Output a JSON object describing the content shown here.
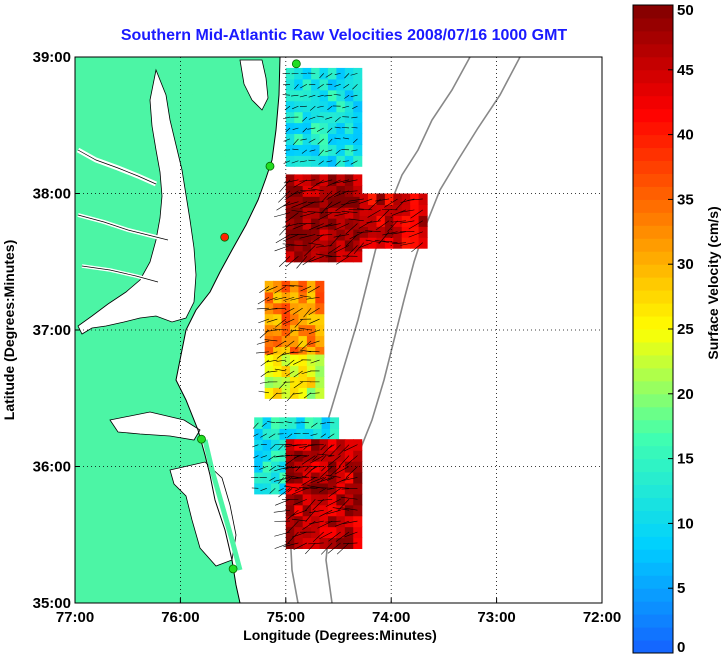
{
  "chart_data": {
    "type": "heatmap",
    "title": "Southern Mid-Atlantic Raw Velocities 2008/07/16 1000 GMT",
    "xlabel": "Longitude (Degrees:Minutes)",
    "ylabel": "Latitude (Degrees:Minutes)",
    "colorbar_label": "Surface Velocity (cm/s)",
    "xlim": [
      -77,
      -72
    ],
    "ylim": [
      35,
      39
    ],
    "x_ticks": [
      -77,
      -76,
      -75,
      -74,
      -73,
      -72
    ],
    "x_tick_labels": [
      "77:00",
      "76:00",
      "75:00",
      "74:00",
      "73:00",
      "72:00"
    ],
    "y_ticks": [
      35,
      36,
      37,
      38,
      39
    ],
    "y_tick_labels": [
      "35:00",
      "36:00",
      "37:00",
      "38:00",
      "39:00"
    ],
    "colorbar_range": [
      0,
      50
    ],
    "colorbar_ticks": [
      0,
      5,
      10,
      15,
      20,
      25,
      30,
      35,
      40,
      45,
      50
    ],
    "colorbar_tick_labels": [
      "0",
      "5",
      "10",
      "15",
      "20",
      "25",
      "30",
      "35",
      "40",
      "45",
      "50"
    ],
    "grid": "dotted",
    "colormap": [
      "#1560ff",
      "#00d0ff",
      "#40ffb0",
      "#ffff00",
      "#ff8000",
      "#ff0000",
      "#800000"
    ],
    "land_color": "#4cf5a5",
    "title_color": "#1a1aff",
    "velocity_regions": [
      {
        "lon_range": [
          -75.0,
          -74.3
        ],
        "lat_range": [
          38.2,
          38.9
        ],
        "speed": 12
      },
      {
        "lon_range": [
          -75.0,
          -74.3
        ],
        "lat_range": [
          37.5,
          38.1
        ],
        "speed": 48
      },
      {
        "lon_range": [
          -74.3,
          -73.7
        ],
        "lat_range": [
          37.6,
          38.0
        ],
        "speed": 45
      },
      {
        "lon_range": [
          -75.2,
          -74.7
        ],
        "lat_range": [
          36.8,
          37.3
        ],
        "speed": 33
      },
      {
        "lon_range": [
          -75.2,
          -74.7
        ],
        "lat_range": [
          36.5,
          36.8
        ],
        "speed": 24
      },
      {
        "lon_range": [
          -75.3,
          -74.5
        ],
        "lat_range": [
          35.8,
          36.3
        ],
        "speed": 12
      },
      {
        "lon_range": [
          -75.0,
          -74.3
        ],
        "lat_range": [
          35.4,
          36.2
        ],
        "speed": 46
      }
    ],
    "sites": [
      {
        "lon": -74.9,
        "lat": 38.95,
        "color": "#22dd22"
      },
      {
        "lon": -75.15,
        "lat": 38.2,
        "color": "#22dd22"
      },
      {
        "lon": -75.58,
        "lat": 37.68,
        "color": "#ff2200"
      },
      {
        "lon": -75.8,
        "lat": 36.2,
        "color": "#22dd22"
      },
      {
        "lon": -75.5,
        "lat": 35.25,
        "color": "#22dd22"
      }
    ]
  }
}
